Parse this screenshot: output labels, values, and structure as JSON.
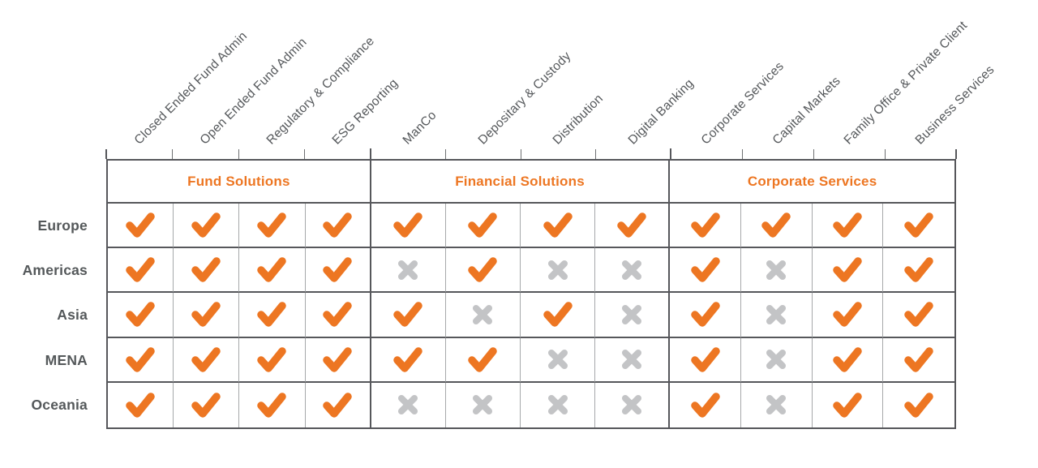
{
  "chart_data": {
    "type": "table",
    "columns": [
      "Closed Ended Fund Admin",
      "Open Ended Fund Admin",
      "Regulatory & Compliance",
      "ESG Reporting",
      "ManCo",
      "Depositary & Custody",
      "Distribution",
      "Digital Banking",
      "Corporate Services",
      "Capital Markets",
      "Family Office & Private Client",
      "Business Services"
    ],
    "column_groups": [
      {
        "label": "Fund Solutions",
        "column_span": 4
      },
      {
        "label": "Financial Solutions",
        "column_span": 4
      },
      {
        "label": "Corporate Services",
        "column_span": 4
      }
    ],
    "rows": [
      {
        "region": "Europe",
        "values": [
          true,
          true,
          true,
          true,
          true,
          true,
          true,
          true,
          true,
          true,
          true,
          true
        ]
      },
      {
        "region": "Americas",
        "values": [
          true,
          true,
          true,
          true,
          false,
          true,
          false,
          false,
          true,
          false,
          true,
          true
        ]
      },
      {
        "region": "Asia",
        "values": [
          true,
          true,
          true,
          true,
          true,
          false,
          true,
          false,
          true,
          false,
          true,
          true
        ]
      },
      {
        "region": "MENA",
        "values": [
          true,
          true,
          true,
          true,
          true,
          true,
          false,
          false,
          true,
          false,
          true,
          true
        ]
      },
      {
        "region": "Oceania",
        "values": [
          true,
          true,
          true,
          true,
          false,
          false,
          false,
          false,
          true,
          false,
          true,
          true
        ]
      }
    ],
    "icons": {
      "available": "check-icon",
      "unavailable": "cross-icon"
    },
    "layout_hints": {
      "grid": "on",
      "legend_position": "none"
    }
  },
  "colors": {
    "accent_orange": "#ED7622",
    "cross_gray": "#C3C4C6",
    "label_dark": "#54585A",
    "grid_dark": "#56575B",
    "grid_light": "#A6A8AA"
  }
}
